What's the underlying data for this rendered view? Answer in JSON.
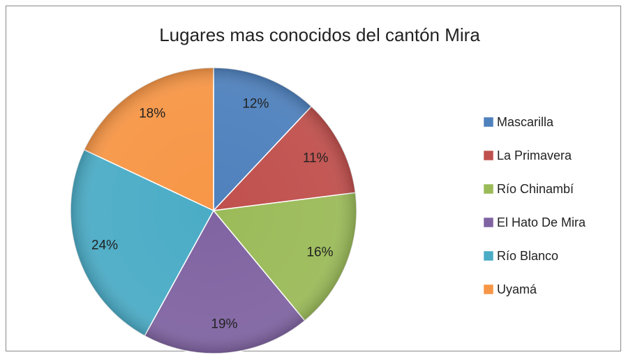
{
  "chart_data": {
    "type": "pie",
    "title": "Lugares mas conocidos del cantón Mira",
    "categories": [
      "Mascarilla",
      "La Primavera",
      "Río Chinambí",
      "El Hato De Mira",
      "Río Blanco",
      "Uyamá"
    ],
    "values": [
      12,
      11,
      16,
      19,
      24,
      18
    ],
    "value_labels": [
      "12%",
      "11%",
      "16%",
      "19%",
      "24%",
      "18%"
    ],
    "colors": [
      "#4f81bd",
      "#c0504d",
      "#9bbb59",
      "#8064a2",
      "#4bacc6",
      "#f79646"
    ],
    "legend": "right"
  }
}
